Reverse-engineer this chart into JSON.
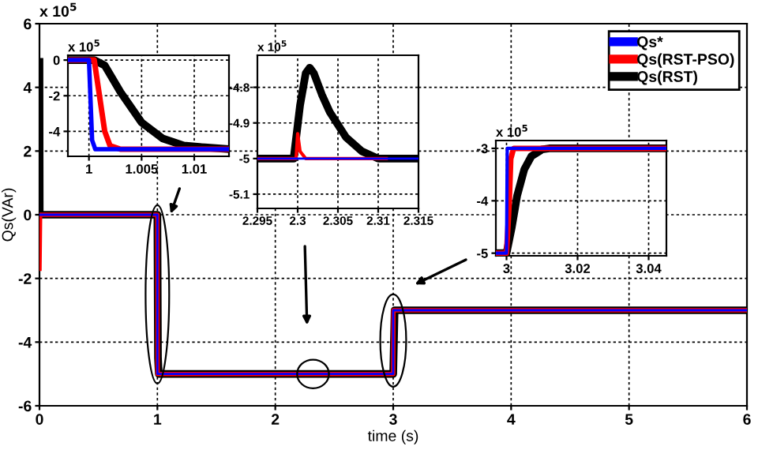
{
  "chart_data": [
    {
      "type": "line",
      "xlabel": "time (s)",
      "ylabel": "Qs(VAr)",
      "annotations": [
        "x 10$^{5}$"
      ],
      "xlim": [
        0,
        6
      ],
      "ylim": [
        -6,
        6
      ],
      "xticks": [
        0,
        1,
        2,
        3,
        4,
        5,
        6
      ],
      "yticks": [
        -6,
        -4,
        -2,
        0,
        2,
        4,
        6
      ],
      "grid": true,
      "legend": "top right",
      "series": [
        {
          "name": "Qs*",
          "color": "#0000ff",
          "x": [
            0,
            1,
            1,
            3,
            3,
            6
          ],
          "values": [
            0,
            0,
            -5,
            -5,
            -3,
            -3
          ]
        },
        {
          "name": "Qs(RST-PSO)",
          "color": "#ff0000",
          "x": [
            0,
            0.005,
            0.01,
            1,
            1.002,
            3,
            3.002,
            6
          ],
          "values": [
            -1.7,
            0,
            0,
            0,
            -5,
            -5,
            -3,
            -3
          ]
        },
        {
          "name": "Qs(RST)",
          "color": "#000000",
          "x": [
            0,
            0.002,
            0.01,
            1,
            1.005,
            1.012,
            3,
            3.012,
            6
          ],
          "values": [
            4.8,
            0,
            0,
            0,
            -4.5,
            -5,
            -5,
            -3,
            -3
          ]
        }
      ]
    },
    {
      "type": "line",
      "annotations": [
        "x 10$^{5}$"
      ],
      "xlim": [
        0.998,
        1.0133
      ],
      "ylim": [
        -5.4,
        0.27
      ],
      "xticks": [
        1,
        1.005,
        1.01
      ],
      "yticks": [
        -4,
        -2,
        0
      ],
      "grid": true,
      "series": [
        {
          "color": "#0000ff",
          "x": [
            0.998,
            1.0,
            1.0003,
            1.0006,
            1.0133
          ],
          "values": [
            0,
            0,
            -4.5,
            -5,
            -5
          ]
        },
        {
          "color": "#ff0000",
          "x": [
            0.998,
            1.0005,
            1.001,
            1.0015,
            1.002,
            1.003,
            1.0133
          ],
          "values": [
            0,
            0,
            -2,
            -4,
            -4.8,
            -5,
            -5
          ]
        },
        {
          "color": "#000000",
          "x": [
            0.998,
            1.0005,
            1.0015,
            1.003,
            1.005,
            1.007,
            1.009,
            1.011,
            1.0133
          ],
          "values": [
            0,
            0,
            -0.3,
            -1.8,
            -3.5,
            -4.4,
            -4.8,
            -4.9,
            -5
          ]
        }
      ]
    },
    {
      "type": "line",
      "annotations": [
        "x 10$^{5}$"
      ],
      "xlim": [
        2.295,
        2.315
      ],
      "ylim": [
        -5.14,
        -4.71
      ],
      "xticks": [
        2.295,
        2.3,
        2.305,
        2.31,
        2.315
      ],
      "yticks": [
        -5.1,
        -5,
        -4.9,
        -4.8
      ],
      "grid": true,
      "series": [
        {
          "color": "#0000ff",
          "x": [
            2.295,
            2.315
          ],
          "values": [
            -5,
            -5
          ]
        },
        {
          "color": "#ff0000",
          "x": [
            2.295,
            2.2998,
            2.3,
            2.3003,
            2.301,
            2.311
          ],
          "values": [
            -5,
            -5,
            -4.93,
            -4.98,
            -5,
            -5
          ]
        },
        {
          "color": "#000000",
          "x": [
            2.295,
            2.2995,
            2.3003,
            2.301,
            2.3015,
            2.302,
            2.303,
            2.304,
            2.306,
            2.308,
            2.31,
            2.315
          ],
          "values": [
            -5,
            -5,
            -4.85,
            -4.76,
            -4.745,
            -4.76,
            -4.82,
            -4.87,
            -4.94,
            -4.98,
            -5,
            -5
          ]
        }
      ]
    },
    {
      "type": "line",
      "annotations": [
        "x 10$^{5}$"
      ],
      "xlim": [
        2.997,
        3.045
      ],
      "ylim": [
        -5.05,
        -2.85
      ],
      "xticks": [
        3,
        3.02,
        3.04
      ],
      "yticks": [
        -5,
        -4,
        -3
      ],
      "grid": true,
      "series": [
        {
          "color": "#0000ff",
          "x": [
            2.997,
            3.0,
            3.0002,
            3.045
          ],
          "values": [
            -5,
            -5,
            -3,
            -3
          ]
        },
        {
          "color": "#ff0000",
          "x": [
            2.997,
            3.0,
            3.0008,
            3.0012,
            3.002,
            3.045
          ],
          "values": [
            -5,
            -5,
            -4,
            -3.2,
            -3,
            -3
          ]
        },
        {
          "color": "#000000",
          "x": [
            2.997,
            3.0,
            3.0015,
            3.003,
            3.005,
            3.007,
            3.01,
            3.012,
            3.045
          ],
          "values": [
            -5,
            -5,
            -4.5,
            -3.9,
            -3.4,
            -3.15,
            -3.02,
            -3,
            -3
          ]
        }
      ]
    }
  ]
}
